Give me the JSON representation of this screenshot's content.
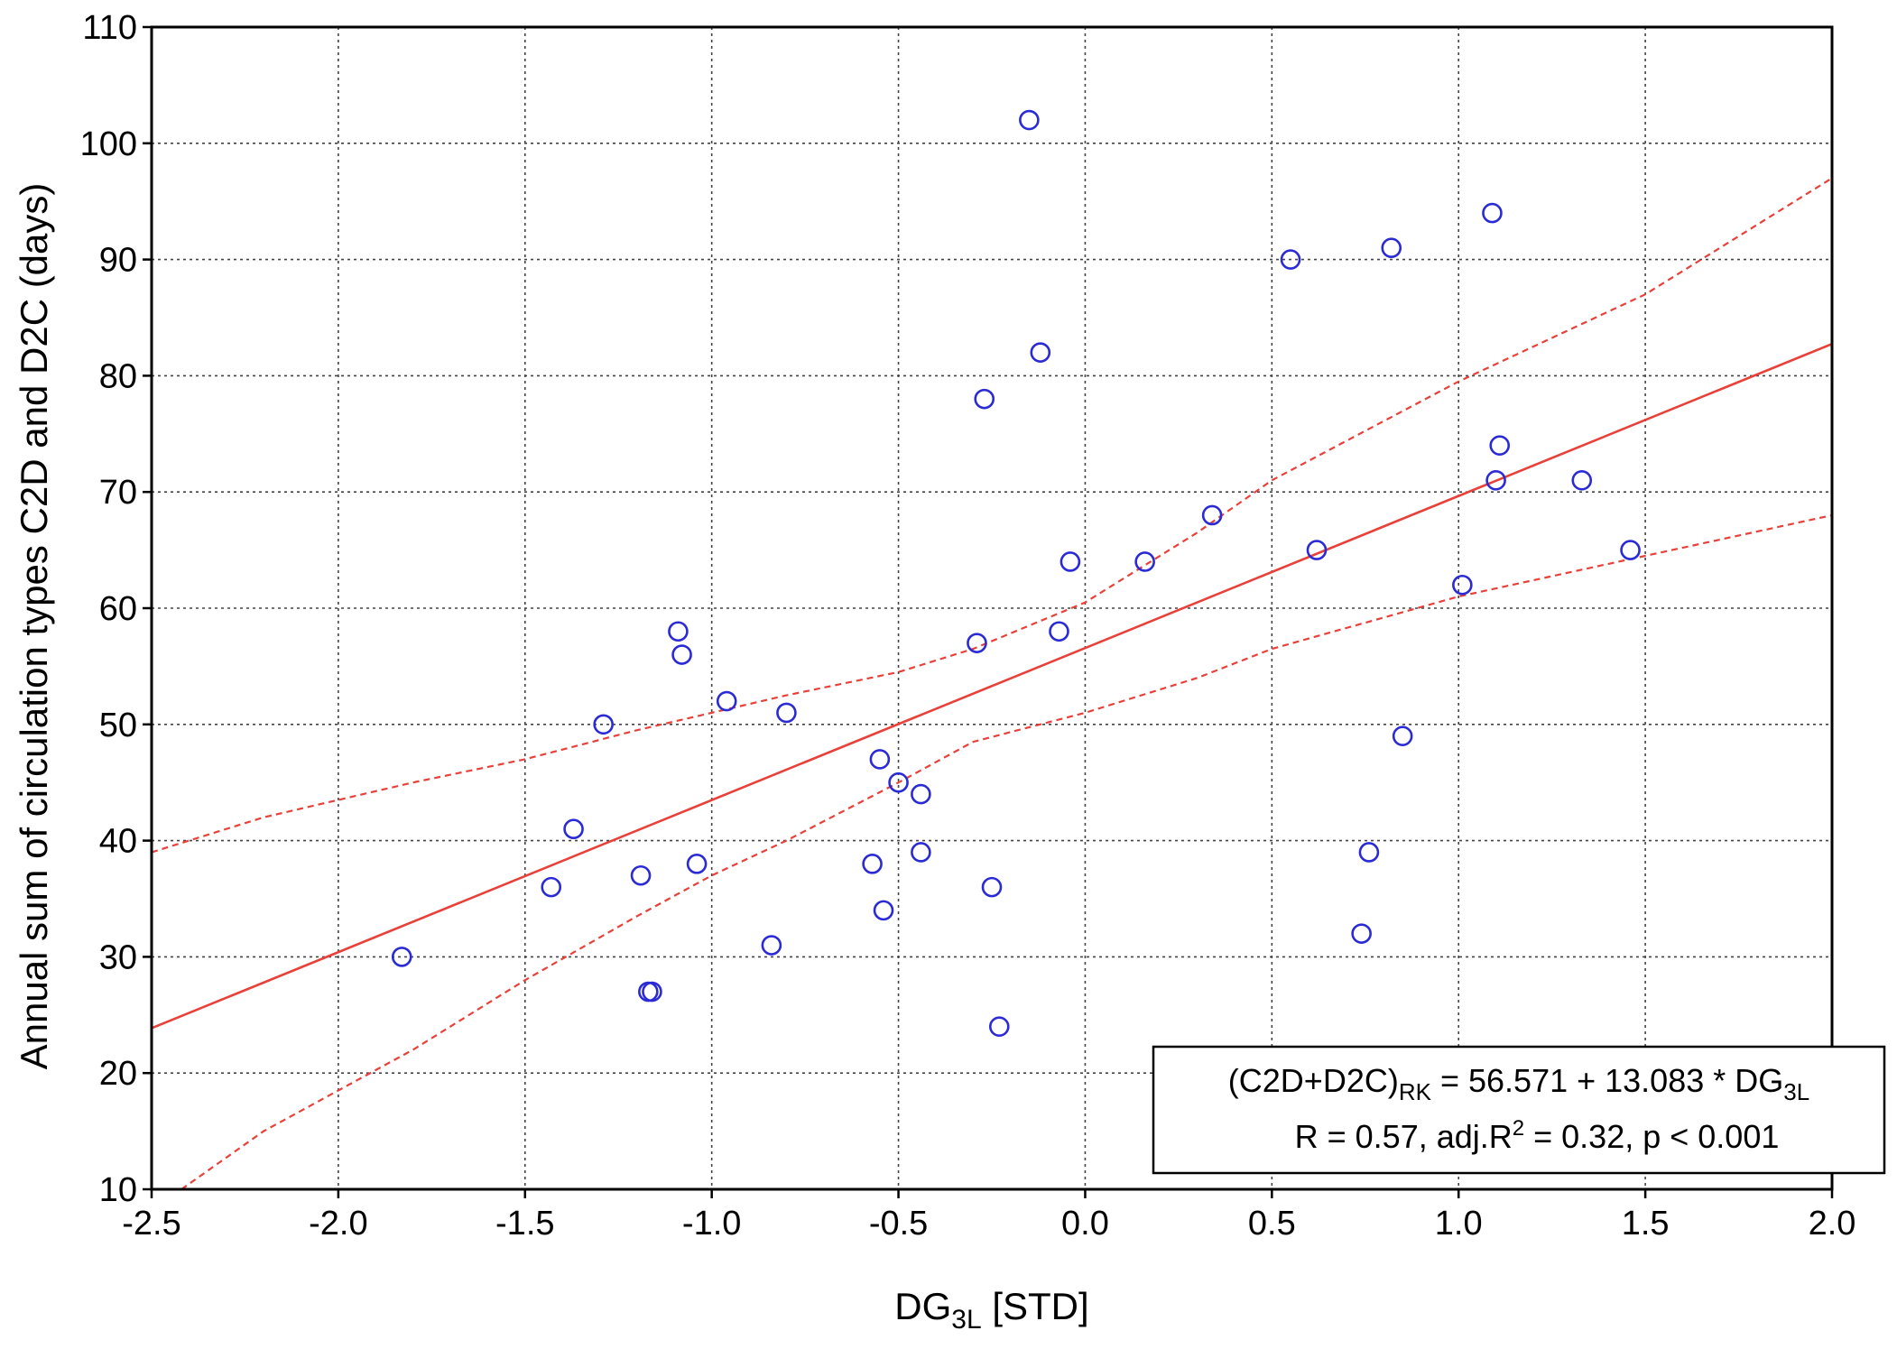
{
  "chart_data": {
    "type": "scatter",
    "title": "",
    "xlabel_main": "DG",
    "xlabel_sub": "3L",
    "xlabel_rest": " [STD]",
    "ylabel": "Annual sum of circulation types C2D and D2C (days)",
    "xlim": [
      -2.5,
      2.0
    ],
    "ylim": [
      10,
      110
    ],
    "xticks": [
      -2.5,
      -2.0,
      -1.5,
      -1.0,
      -0.5,
      0.0,
      0.5,
      1.0,
      1.5,
      2.0
    ],
    "xtick_labels": [
      "-2.5",
      "-2.0",
      "-1.5",
      "-1.0",
      "-0.5",
      "0.0",
      "0.5",
      "1.0",
      "1.5",
      "2.0"
    ],
    "yticks": [
      10,
      20,
      30,
      40,
      50,
      60,
      70,
      80,
      90,
      100,
      110
    ],
    "ytick_labels": [
      "10",
      "20",
      "30",
      "40",
      "50",
      "60",
      "70",
      "80",
      "90",
      "100",
      "110"
    ],
    "grid": true,
    "colors": {
      "points": "#2b2bd6",
      "fit": "#e8413a",
      "ci": "#e8413a"
    },
    "fit": {
      "intercept": 56.571,
      "slope": 13.083
    },
    "ci_upper": [
      [
        -2.5,
        39
      ],
      [
        -2.2,
        42
      ],
      [
        -1.8,
        45
      ],
      [
        -1.5,
        47
      ],
      [
        -1.2,
        49.5
      ],
      [
        -1.0,
        51
      ],
      [
        -0.8,
        52.5
      ],
      [
        -0.5,
        54.5
      ],
      [
        -0.3,
        56.5
      ],
      [
        0.0,
        60.5
      ],
      [
        0.3,
        66.5
      ],
      [
        0.5,
        71
      ],
      [
        1.0,
        79.5
      ],
      [
        1.5,
        87
      ],
      [
        2.0,
        97
      ]
    ],
    "ci_lower": [
      [
        -2.42,
        10
      ],
      [
        -2.2,
        15
      ],
      [
        -1.8,
        22
      ],
      [
        -1.5,
        28
      ],
      [
        -1.2,
        33.5
      ],
      [
        -1.0,
        37
      ],
      [
        -0.8,
        40
      ],
      [
        -0.5,
        45
      ],
      [
        -0.3,
        48.5
      ],
      [
        0.0,
        51
      ],
      [
        0.3,
        54
      ],
      [
        0.5,
        56.5
      ],
      [
        1.0,
        61
      ],
      [
        1.5,
        64.5
      ],
      [
        2.0,
        68
      ]
    ],
    "points": [
      {
        "x": -1.83,
        "y": 30
      },
      {
        "x": -1.43,
        "y": 36
      },
      {
        "x": -1.37,
        "y": 41
      },
      {
        "x": -1.29,
        "y": 50
      },
      {
        "x": -1.19,
        "y": 37
      },
      {
        "x": -1.17,
        "y": 27
      },
      {
        "x": -1.16,
        "y": 27
      },
      {
        "x": -1.09,
        "y": 58
      },
      {
        "x": -1.08,
        "y": 56
      },
      {
        "x": -1.04,
        "y": 38
      },
      {
        "x": -0.96,
        "y": 52
      },
      {
        "x": -0.84,
        "y": 31
      },
      {
        "x": -0.8,
        "y": 51
      },
      {
        "x": -0.57,
        "y": 38
      },
      {
        "x": -0.55,
        "y": 47
      },
      {
        "x": -0.54,
        "y": 34
      },
      {
        "x": -0.5,
        "y": 45
      },
      {
        "x": -0.44,
        "y": 44
      },
      {
        "x": -0.44,
        "y": 39
      },
      {
        "x": -0.29,
        "y": 57
      },
      {
        "x": -0.27,
        "y": 78
      },
      {
        "x": -0.25,
        "y": 36
      },
      {
        "x": -0.23,
        "y": 24
      },
      {
        "x": -0.15,
        "y": 102
      },
      {
        "x": -0.12,
        "y": 82
      },
      {
        "x": -0.07,
        "y": 58
      },
      {
        "x": -0.04,
        "y": 64
      },
      {
        "x": 0.16,
        "y": 64
      },
      {
        "x": 0.34,
        "y": 68
      },
      {
        "x": 0.55,
        "y": 90
      },
      {
        "x": 0.62,
        "y": 65
      },
      {
        "x": 0.74,
        "y": 32
      },
      {
        "x": 0.76,
        "y": 39
      },
      {
        "x": 0.82,
        "y": 91
      },
      {
        "x": 0.85,
        "y": 49
      },
      {
        "x": 1.01,
        "y": 62
      },
      {
        "x": 1.09,
        "y": 94
      },
      {
        "x": 1.1,
        "y": 71
      },
      {
        "x": 1.11,
        "y": 74
      },
      {
        "x": 1.33,
        "y": 71
      },
      {
        "x": 1.46,
        "y": 65
      }
    ],
    "equation": {
      "line1_a": "(C2D+D2C)",
      "line1_sub": "RK",
      "line1_b": " = 56.571 + 13.083 * DG",
      "line1_sub2": "3L",
      "line2_a": "R = 0.57, adj.R",
      "line2_sup": "2",
      "line2_b": " = 0.32, p < 0.001"
    }
  }
}
